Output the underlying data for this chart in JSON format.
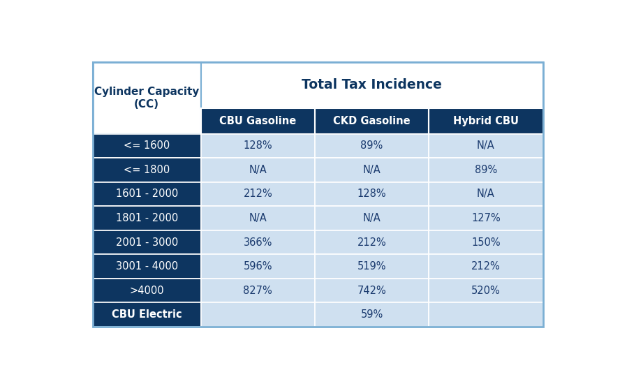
{
  "title_row": "Total Tax Incidence",
  "header_col": "Cylinder Capacity\n(CC)",
  "sub_headers": [
    "CBU Gasoline",
    "CKD Gasoline",
    "Hybrid CBU"
  ],
  "rows": [
    {
      "label": "<= 1600",
      "values": [
        "128%",
        "89%",
        "N/A"
      ],
      "is_electric": false
    },
    {
      "label": "<= 1800",
      "values": [
        "N/A",
        "N/A",
        "89%"
      ],
      "is_electric": false
    },
    {
      "label": "1601 - 2000",
      "values": [
        "212%",
        "128%",
        "N/A"
      ],
      "is_electric": false
    },
    {
      "label": "1801 - 2000",
      "values": [
        "N/A",
        "N/A",
        "127%"
      ],
      "is_electric": false
    },
    {
      "label": "2001 - 3000",
      "values": [
        "366%",
        "212%",
        "150%"
      ],
      "is_electric": false
    },
    {
      "label": "3001 - 4000",
      "values": [
        "596%",
        "519%",
        "212%"
      ],
      "is_electric": false
    },
    {
      "label": ">4000",
      "values": [
        "827%",
        "742%",
        "520%"
      ],
      "is_electric": false
    },
    {
      "label": "CBU Electric",
      "values": [
        "",
        "59%",
        ""
      ],
      "is_electric": true
    }
  ],
  "dark_blue": "#0d3560",
  "medium_blue": "#0d3560",
  "light_blue": "#cfe0f0",
  "white": "#ffffff",
  "header_bg": "#ffffff",
  "header_text_dark": "#0d3560",
  "header_text_white": "#ffffff",
  "data_text_color": "#1a3a6e",
  "background_color": "#ffffff",
  "border_color": "#7bafd4",
  "figsize": [
    8.88,
    5.5
  ],
  "dpi": 100
}
